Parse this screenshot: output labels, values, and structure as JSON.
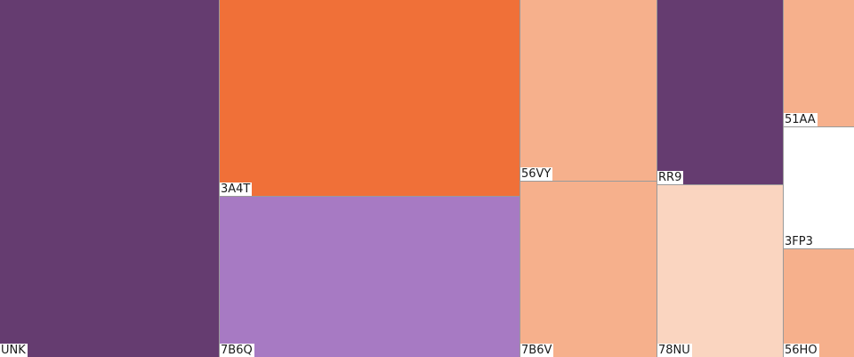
{
  "chart_data": {
    "type": "treemap",
    "title": "",
    "colors": {
      "dark_purple": "#653c70",
      "light_purple": "#a77ac3",
      "orange": "#f07038",
      "peach": "#f6b08c",
      "light_peach": "#fad5c0",
      "white": "#ffffff"
    },
    "tiles": [
      {
        "label": "UNK",
        "color": "#653c70"
      },
      {
        "label": "3A4T",
        "color": "#f07038"
      },
      {
        "label": "7B6Q",
        "color": "#a77ac3"
      },
      {
        "label": "56VY",
        "color": "#f6b08c"
      },
      {
        "label": "7B6V",
        "color": "#f6b08c"
      },
      {
        "label": "RR9",
        "color": "#653c70"
      },
      {
        "label": "78NU",
        "color": "#fad5c0"
      },
      {
        "label": "51AA",
        "color": "#f6b08c"
      },
      {
        "label": "3FP3",
        "color": "#ffffff"
      },
      {
        "label": "56HO",
        "color": "#f6b08c"
      }
    ]
  }
}
